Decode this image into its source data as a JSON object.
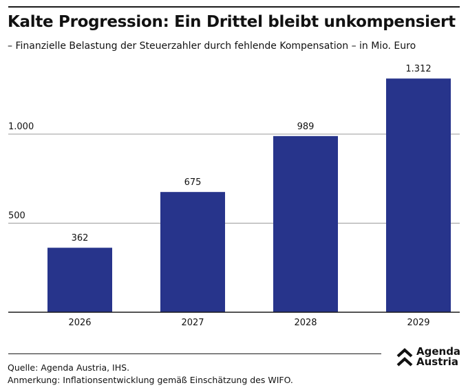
{
  "title": "Kalte Progression: Ein Drittel bleibt unkompensiert",
  "subtitle": "– Finanzielle Belastung der Steuerzahler durch fehlende Kompensation – in Mio. Euro",
  "chart_data": {
    "type": "bar",
    "categories": [
      "2026",
      "2027",
      "2028",
      "2029"
    ],
    "values": [
      362,
      675,
      989,
      1312
    ],
    "value_labels": [
      "362",
      "675",
      "989",
      "1.312"
    ],
    "yticks": [
      500,
      1000
    ],
    "ytick_labels": [
      "500",
      "1.000"
    ],
    "ylim": [
      0,
      1312
    ],
    "bar_color": "#27348b",
    "grid": true
  },
  "footer": {
    "source": "Quelle: Agenda Austria, IHS.",
    "note": "Anmerkung: Inflationsentwicklung gemäß Einschätzung des WIFO."
  },
  "logo": {
    "line1": "Agenda",
    "line2": "Austria",
    "icon": "chevron-up-icon"
  }
}
